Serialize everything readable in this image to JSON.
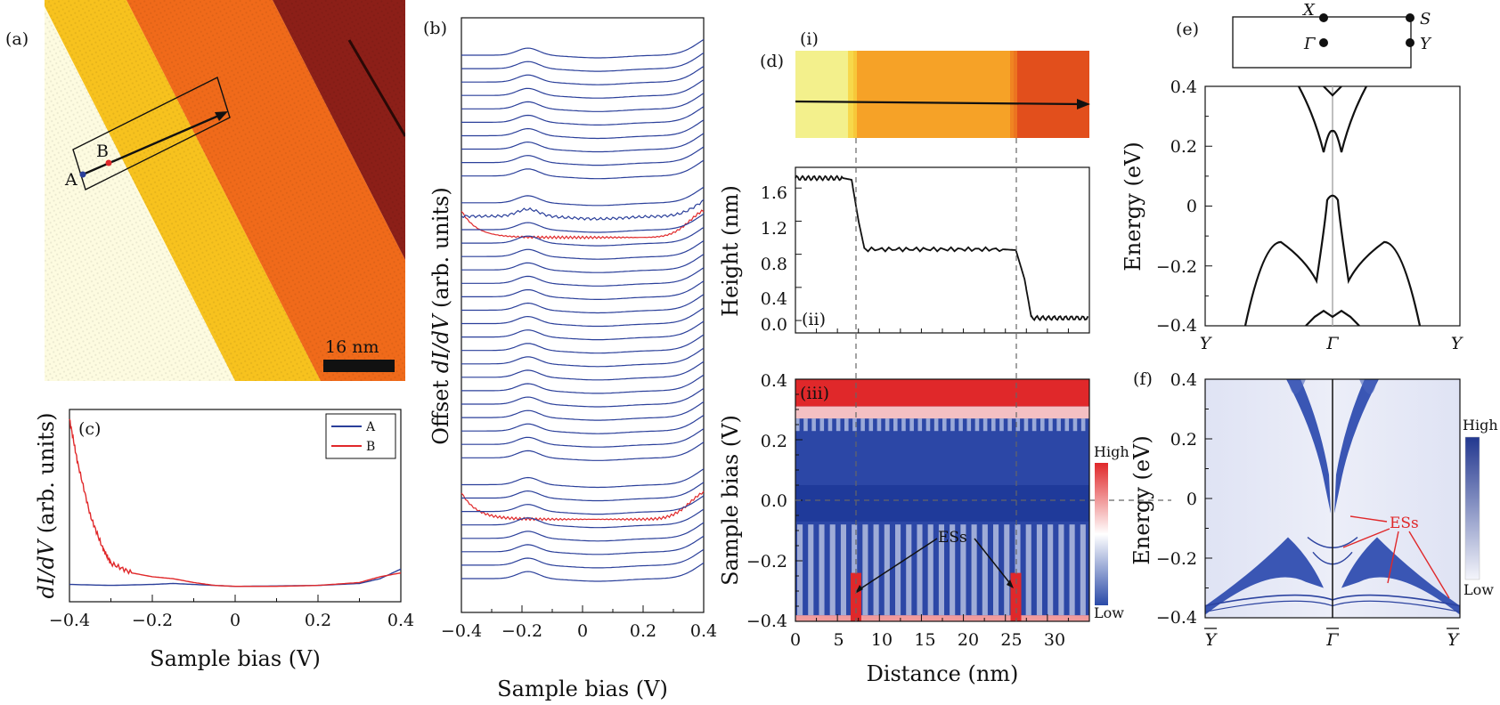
{
  "figure": {
    "panel_a": {
      "label": "(a)",
      "point_a": "A",
      "point_b": "B",
      "scale_bar": "16 nm"
    },
    "panel_b": {
      "label": "(b)",
      "ylabel_prefix": "Offset ",
      "ylabel_var": "dI/dV",
      "ylabel_suffix": " (arb. units)",
      "xlabel": "Sample bias (V)",
      "xticks": [
        "−0.4",
        "−0.2",
        "0",
        "0.2",
        "0.4"
      ]
    },
    "panel_c": {
      "label": "(c)",
      "ylabel_var": "dI/dV",
      "ylabel_suffix": " (arb. units)",
      "xlabel": "Sample bias (V)",
      "xticks": [
        "−0.4",
        "−0.2",
        "0",
        "0.2",
        "0.4"
      ],
      "legend": [
        {
          "name": "A",
          "color": "#2a3f9a"
        },
        {
          "name": "B",
          "color": "#e0282a"
        }
      ]
    },
    "panel_d": {
      "label": "(d)",
      "sub_i": "(i)",
      "sub_ii": "(ii)",
      "sub_iii": "(iii)",
      "height_ylabel": "Height (nm)",
      "height_yticks": [
        "1.6",
        "1.2",
        "0.8",
        "0.4",
        "0.0"
      ],
      "bias_ylabel": "Sample bias (V)",
      "bias_yticks": [
        "0.4",
        "0.2",
        "0.0",
        "−0.2",
        "−0.4"
      ],
      "xlabel": "Distance (nm)",
      "xticks": [
        "0",
        "5",
        "10",
        "15",
        "20",
        "25",
        "30"
      ],
      "colorbar_high": "High",
      "colorbar_low": "Low",
      "ess_label": "ESs"
    },
    "panel_e": {
      "label": "(e)",
      "ylabel": "Energy (eV)",
      "yticks": [
        "0.4",
        "0.2",
        "0",
        "−0.2",
        "−0.4"
      ],
      "xticks": [
        "Y",
        "Γ",
        "Y"
      ],
      "bz_x": "X",
      "bz_s": "S",
      "bz_gamma": "Γ",
      "bz_y": "Y"
    },
    "panel_f": {
      "label": "(f)",
      "ylabel": "Energy (eV)",
      "yticks": [
        "0.4",
        "0.2",
        "0",
        "−0.2",
        "−0.4"
      ],
      "xticks": [
        "Y",
        "Γ",
        "Y"
      ],
      "colorbar_high": "High",
      "colorbar_low": "Low",
      "ess_label": "ESs"
    }
  },
  "colors": {
    "blue": "#2a3f9a",
    "red": "#e0282a",
    "terrace_top": "#fdfbe0",
    "terrace_2": "#f7c21e",
    "terrace_3": "#f06a1a",
    "terrace_4": "#8c1f18"
  },
  "chart_data": [
    {
      "id": "c",
      "type": "line",
      "xlabel": "Sample bias (V)",
      "ylabel": "dI/dV (arb. units)",
      "xlim": [
        -0.4,
        0.4
      ],
      "ylim": [
        0,
        1
      ],
      "series": [
        {
          "name": "A",
          "color": "#2a3f9a",
          "x": [
            -0.4,
            -0.3,
            -0.2,
            -0.15,
            -0.1,
            0,
            0.1,
            0.2,
            0.3,
            0.35,
            0.4
          ],
          "y": [
            0.09,
            0.085,
            0.09,
            0.095,
            0.09,
            0.08,
            0.082,
            0.085,
            0.095,
            0.12,
            0.17
          ]
        },
        {
          "name": "B",
          "color": "#e0282a",
          "x": [
            -0.4,
            -0.38,
            -0.35,
            -0.32,
            -0.3,
            -0.25,
            -0.2,
            -0.15,
            -0.1,
            -0.05,
            0,
            0.1,
            0.2,
            0.3,
            0.35,
            0.4
          ],
          "y": [
            0.95,
            0.72,
            0.45,
            0.28,
            0.2,
            0.15,
            0.13,
            0.12,
            0.1,
            0.085,
            0.08,
            0.08,
            0.085,
            0.1,
            0.13,
            0.15
          ]
        }
      ]
    },
    {
      "id": "b",
      "type": "line",
      "xlabel": "Sample bias (V)",
      "ylabel": "Offset dI/dV (arb. units)",
      "xlim": [
        -0.4,
        0.4
      ],
      "n_spectra": 40,
      "red_spectra_indices": [
        10,
        31
      ],
      "stacked": true
    },
    {
      "id": "d-ii",
      "type": "line",
      "xlabel": "Distance (nm)",
      "ylabel": "Height (nm)",
      "xlim": [
        0,
        34
      ],
      "ylim": [
        -0.15,
        1.85
      ],
      "series": [
        {
          "name": "height",
          "x": [
            0,
            5.5,
            6.5,
            7.3,
            8,
            24,
            25.5,
            26.5,
            27.3,
            34
          ],
          "y": [
            1.72,
            1.72,
            1.7,
            1.2,
            0.86,
            0.86,
            0.85,
            0.5,
            0.03,
            0.03
          ]
        }
      ]
    },
    {
      "id": "d-iii",
      "type": "heatmap",
      "xlabel": "Distance (nm)",
      "ylabel": "Sample bias (V)",
      "xlim": [
        0,
        34
      ],
      "ylim": [
        -0.4,
        0.4
      ],
      "edge_state_positions_nm": [
        7,
        25.5
      ]
    },
    {
      "id": "e",
      "type": "line",
      "ylabel": "Energy (eV)",
      "ylim": [
        -0.4,
        0.4
      ],
      "k_labels": [
        "Y",
        "Γ",
        "Y"
      ],
      "gamma_top_band_min_eV": 0.25,
      "gamma_valence_max_eV": 0.03
    },
    {
      "id": "f",
      "type": "heatmap",
      "ylabel": "Energy (eV)",
      "ylim": [
        -0.4,
        0.4
      ],
      "k_labels": [
        "Y",
        "Γ",
        "Y"
      ]
    }
  ]
}
